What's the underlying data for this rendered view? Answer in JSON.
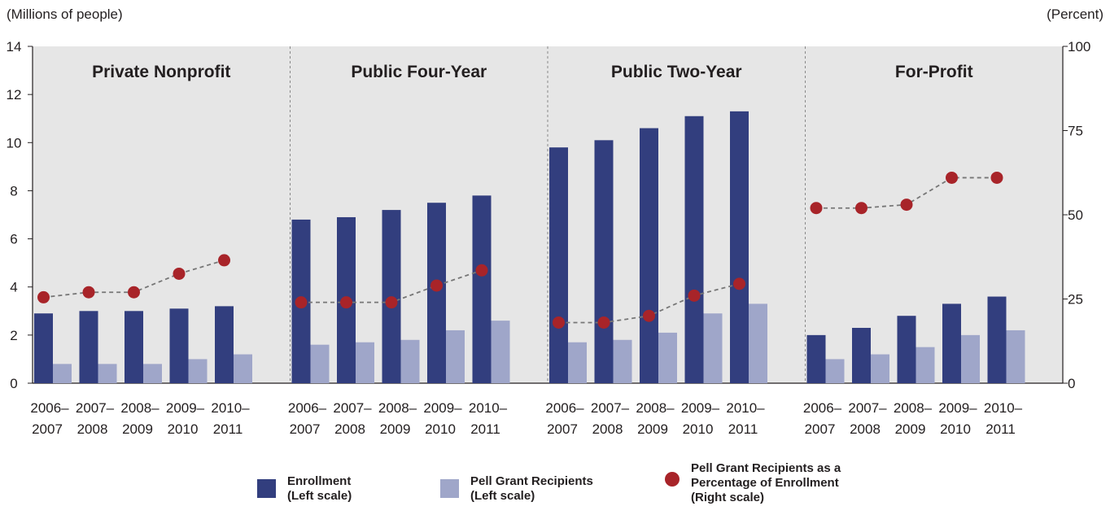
{
  "chart_data": {
    "type": "bar",
    "left_axis_label": "(Millions of people)",
    "right_axis_label": "(Percent)",
    "left_ylim": [
      0,
      14
    ],
    "right_ylim": [
      0,
      100
    ],
    "left_ticks": [
      "0",
      "2",
      "4",
      "6",
      "8",
      "10",
      "12",
      "14"
    ],
    "right_ticks": [
      "0",
      "25",
      "50",
      "75",
      "100"
    ],
    "categories": [
      "2006–2007",
      "2007–2008",
      "2008–2009",
      "2009–2010",
      "2010–2011"
    ],
    "category_lines": [
      [
        "2006–",
        "2007"
      ],
      [
        "2007–",
        "2008"
      ],
      [
        "2008–",
        "2009"
      ],
      [
        "2009–",
        "2010"
      ],
      [
        "2010–",
        "2011"
      ]
    ],
    "colors": {
      "enrollment": "#323e7e",
      "pell": "#9fa6c9",
      "percent": "#a82429",
      "panel_bg": "#e6e6e6",
      "line": "#777777"
    },
    "panels": [
      {
        "title": "Private Nonprofit",
        "enrollment": [
          2.9,
          3.0,
          3.0,
          3.1,
          3.2
        ],
        "pell": [
          0.8,
          0.8,
          0.8,
          1.0,
          1.2
        ],
        "percent": [
          25.5,
          27,
          27,
          32.5,
          36.5
        ]
      },
      {
        "title": "Public Four-Year",
        "enrollment": [
          6.8,
          6.9,
          7.2,
          7.5,
          7.8
        ],
        "pell": [
          1.6,
          1.7,
          1.8,
          2.2,
          2.6
        ],
        "percent": [
          24,
          24,
          24,
          29,
          33.5
        ]
      },
      {
        "title": "Public Two-Year",
        "enrollment": [
          9.8,
          10.1,
          10.6,
          11.1,
          11.3
        ],
        "pell": [
          1.7,
          1.8,
          2.1,
          2.9,
          3.3
        ],
        "percent": [
          18,
          18,
          20,
          26,
          29.5
        ]
      },
      {
        "title": "For-Profit",
        "enrollment": [
          2.0,
          2.3,
          2.8,
          3.3,
          3.6
        ],
        "pell": [
          1.0,
          1.2,
          1.5,
          2.0,
          2.2
        ],
        "percent": [
          52,
          52,
          53,
          61,
          61
        ]
      }
    ],
    "legend": {
      "enrollment": "Enrollment\n(Left scale)",
      "pell": "Pell Grant Recipients\n(Left scale)",
      "percent": "Pell Grant Recipients as a\nPercentage of Enrollment\n(Right scale)"
    }
  }
}
